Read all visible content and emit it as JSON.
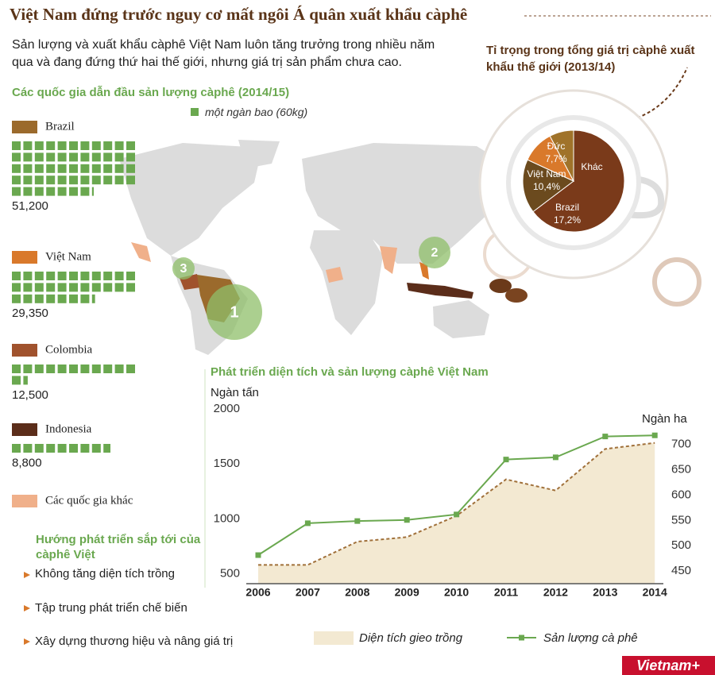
{
  "header": {
    "title": "Việt Nam đứng trước nguy cơ mất ngôi Á quân xuất khẩu càphê",
    "intro": "Sản lượng và xuất khẩu càphê Việt Nam luôn tăng trưởng trong nhiều năm qua và đang đứng thứ hai thế giới, nhưng giá trị sản phẩm chưa cao."
  },
  "map": {
    "markers": [
      "1",
      "2",
      "3"
    ]
  },
  "directions": {
    "heading": "Hướng phát triển sắp tới của càphê Việt",
    "items": [
      "Không tăng diện tích trồng",
      "Tập trung phát triển chế biến",
      "Xây dựng thương hiệu và nâng giá trị"
    ]
  },
  "logo": "Vietnam+",
  "chart_data": [
    {
      "type": "waffle",
      "title": "Các quốc gia dẫn đầu sản lượng càphê (2014/15)",
      "unit_label": "một ngàn bao (60kg)",
      "mark_color": "#6aa84f",
      "categories": [
        "Brazil",
        "Việt Nam",
        "Colombia",
        "Indonesia",
        "Các quốc gia khác"
      ],
      "colors": [
        "#9b6a2c",
        "#d9792b",
        "#a0522d",
        "#5b2d1a",
        "#f0b08a"
      ],
      "values": [
        51200,
        29350,
        12500,
        8800,
        null
      ],
      "value_labels": [
        "51,200",
        "29,350",
        "12,500",
        "8,800",
        null
      ]
    },
    {
      "type": "pie",
      "title": "Tỉ trọng trong tổng giá trị càphê xuất khẩu thế giới (2013/14)",
      "categories": [
        "Khác",
        "Brazil",
        "Việt Nam",
        "Đức"
      ],
      "values": [
        64.7,
        17.2,
        10.4,
        7.7
      ],
      "value_labels": [
        null,
        "17,2%",
        "10,4%",
        "7,7%"
      ],
      "colors": [
        "#7a3a1a",
        "#6b4a1e",
        "#d9792b",
        "#a0732a"
      ]
    },
    {
      "type": "line",
      "title": "Phát triển diện tích và sản lượng càphê Việt Nam",
      "ylabel": "Ngàn tấn",
      "y2label": "Ngàn ha",
      "categories": [
        "2006",
        "2007",
        "2008",
        "2009",
        "2010",
        "2011",
        "2012",
        "2013",
        "2014"
      ],
      "ylim": [
        410,
        2000
      ],
      "yticks": [
        500,
        1000,
        1500,
        2000
      ],
      "y2lim": [
        425,
        770
      ],
      "y2ticks": [
        450,
        500,
        550,
        600,
        650,
        700
      ],
      "series": [
        {
          "name": "Diện tích gieo trồng",
          "axis": "y2",
          "area": true,
          "color": "#f3e9d2",
          "edge_color": "#a0703a",
          "values": [
            462,
            462,
            508,
            517,
            559,
            631,
            609,
            691,
            703
          ]
        },
        {
          "name": "Sản lượng cà phê",
          "axis": "y",
          "area": false,
          "color": "#6aa84f",
          "values": [
            670,
            960,
            980,
            990,
            1040,
            1540,
            1560,
            1750,
            1760
          ]
        }
      ]
    }
  ]
}
